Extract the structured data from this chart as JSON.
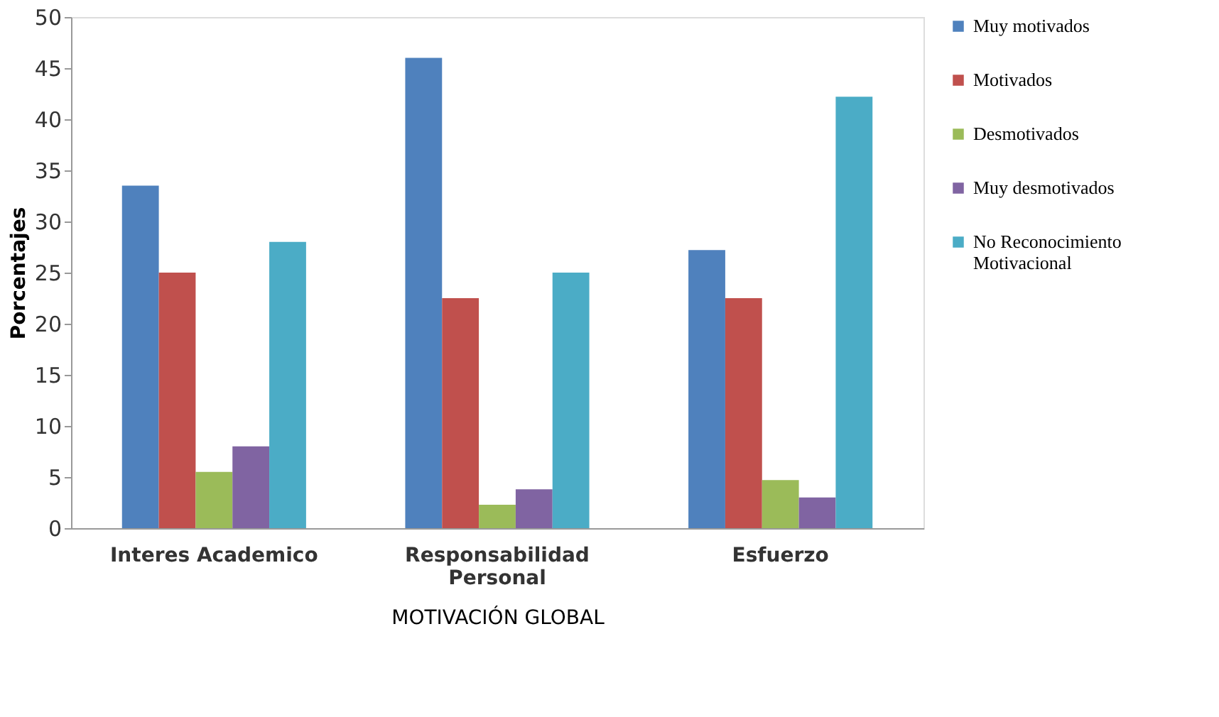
{
  "chart_data": {
    "type": "bar",
    "xlabel": "MOTIVACIÓN GLOBAL",
    "ylabel": "Porcentajes",
    "categories": [
      "Interes Academico",
      "Responsabilidad Personal",
      "Esfuerzo"
    ],
    "series": [
      {
        "name": "Muy motivados",
        "color": "#4f81bd",
        "values": [
          33.5,
          46,
          27.2
        ]
      },
      {
        "name": "Motivados",
        "color": "#c0504d",
        "values": [
          25,
          22.5,
          22.5
        ]
      },
      {
        "name": "Desmotivados",
        "color": "#9bbb59",
        "values": [
          5.5,
          2.3,
          4.7
        ]
      },
      {
        "name": "Muy desmotivados",
        "color": "#8064a2",
        "values": [
          8,
          3.8,
          3
        ]
      },
      {
        "name": "No Reconocimiento Motivacional",
        "color": "#4bacc6",
        "values": [
          28,
          25,
          42.2
        ]
      }
    ],
    "ylim": [
      0,
      50
    ],
    "yticks": [
      0,
      5,
      10,
      15,
      20,
      25,
      30,
      35,
      40,
      45,
      50
    ],
    "grid": false,
    "legend": "right"
  }
}
